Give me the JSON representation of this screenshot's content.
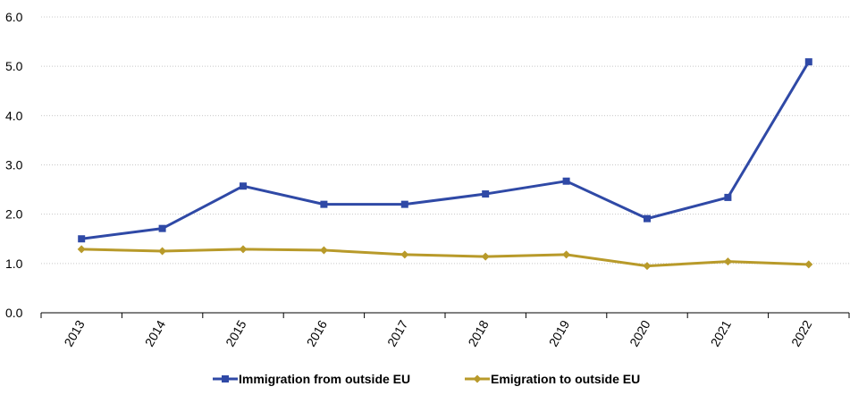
{
  "chart_data": {
    "type": "line",
    "title": "",
    "xlabel": "",
    "ylabel": "",
    "categories": [
      "2013",
      "2014",
      "2015",
      "2016",
      "2017",
      "2018",
      "2019",
      "2020",
      "2021",
      "2022"
    ],
    "series": [
      {
        "name": "Immigration from outside EU",
        "color": "#2f49a6",
        "marker": "square",
        "values": [
          1.5,
          1.71,
          2.57,
          2.2,
          2.2,
          2.41,
          2.67,
          1.91,
          2.34,
          5.09
        ]
      },
      {
        "name": "Emigration to outside EU",
        "color": "#b89a2a",
        "marker": "diamond",
        "values": [
          1.29,
          1.25,
          1.29,
          1.27,
          1.18,
          1.14,
          1.18,
          0.95,
          1.04,
          0.98
        ]
      }
    ],
    "ylim": [
      0,
      6
    ],
    "yticks": [
      "0.0",
      "1.0",
      "2.0",
      "3.0",
      "4.0",
      "5.0",
      "6.0"
    ],
    "grid": true,
    "legend_position": "bottom-center"
  }
}
